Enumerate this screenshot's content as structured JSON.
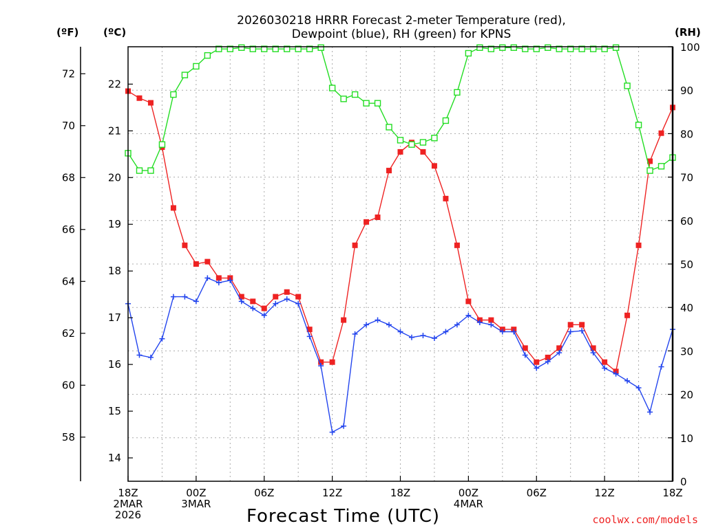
{
  "chart_data": {
    "type": "line",
    "title_lines": [
      "2026030218 HRRR Forecast 2-meter Temperature (red),",
      "Dewpoint (blue), RH (green) for KPNS"
    ],
    "unit_labels": {
      "fahrenheit": "(ºF)",
      "celsius": "(ºC)",
      "rh": "(RH)"
    },
    "xlabel": "Forecast Time (UTC)",
    "credit": "coolwx.com/models",
    "x_range": [
      0,
      48
    ],
    "x_ticks": [
      {
        "hour": 0,
        "lines": [
          "18Z",
          "2MAR",
          "2026"
        ]
      },
      {
        "hour": 6,
        "lines": [
          "00Z",
          "3MAR"
        ]
      },
      {
        "hour": 12,
        "lines": [
          "06Z"
        ]
      },
      {
        "hour": 18,
        "lines": [
          "12Z"
        ]
      },
      {
        "hour": 24,
        "lines": [
          "18Z"
        ]
      },
      {
        "hour": 30,
        "lines": [
          "00Z",
          "4MAR"
        ]
      },
      {
        "hour": 36,
        "lines": [
          "06Z"
        ]
      },
      {
        "hour": 42,
        "lines": [
          "12Z"
        ]
      },
      {
        "hour": 48,
        "lines": [
          "18Z"
        ]
      }
    ],
    "celsius_axis": {
      "range": [
        13.5,
        22.8
      ],
      "ticks": [
        "14",
        "15",
        "16",
        "17",
        "18",
        "19",
        "20",
        "21",
        "22"
      ]
    },
    "fahrenheit_axis": {
      "ticks": [
        "58",
        "60",
        "62",
        "64",
        "66",
        "68",
        "70",
        "72"
      ]
    },
    "rh_axis": {
      "range": [
        0,
        100
      ],
      "ticks": [
        "0",
        "10",
        "20",
        "30",
        "40",
        "50",
        "60",
        "70",
        "80",
        "90",
        "100"
      ]
    },
    "series": [
      {
        "name": "2-meter Temperature",
        "color": "#ee2222",
        "marker": "filled-square",
        "axis": "celsius",
        "values": [
          21.85,
          21.7,
          21.6,
          20.65,
          19.35,
          18.55,
          18.15,
          18.2,
          17.85,
          17.85,
          17.45,
          17.35,
          17.2,
          17.45,
          17.55,
          17.45,
          16.75,
          16.05,
          16.05,
          16.95,
          18.55,
          19.05,
          19.15,
          20.15,
          20.55,
          20.75,
          20.55,
          20.25,
          19.55,
          18.55,
          17.35,
          16.95,
          16.95,
          16.75,
          16.75,
          16.35,
          16.05,
          16.15,
          16.35,
          16.85,
          16.85,
          16.35,
          16.05,
          15.85,
          17.05,
          18.55,
          20.35,
          20.95,
          21.5
        ]
      },
      {
        "name": "Dewpoint",
        "color": "#2244ee",
        "marker": "plus",
        "axis": "celsius",
        "values": [
          17.3,
          16.2,
          16.15,
          16.55,
          17.45,
          17.45,
          17.35,
          17.85,
          17.75,
          17.8,
          17.35,
          17.2,
          17.05,
          17.3,
          17.4,
          17.3,
          16.6,
          15.97,
          14.55,
          14.68,
          16.65,
          16.85,
          16.95,
          16.85,
          16.7,
          16.58,
          16.62,
          16.56,
          16.7,
          16.85,
          17.05,
          16.9,
          16.85,
          16.7,
          16.7,
          16.2,
          15.92,
          16.06,
          16.25,
          16.7,
          16.72,
          16.25,
          15.92,
          15.8,
          15.65,
          15.5,
          14.98,
          15.95,
          16.75
        ]
      },
      {
        "name": "RH",
        "color": "#22dd22",
        "marker": "open-square",
        "axis": "rh",
        "values": [
          75.5,
          71.5,
          71.5,
          77.5,
          89,
          93.5,
          95.5,
          98,
          99.5,
          99.5,
          99.8,
          99.5,
          99.5,
          99.5,
          99.5,
          99.5,
          99.5,
          99.8,
          90.5,
          88,
          89,
          87,
          87,
          81.5,
          78.5,
          77.5,
          78,
          79,
          83,
          89.5,
          98.5,
          99.8,
          99.5,
          99.8,
          99.8,
          99.5,
          99.5,
          99.8,
          99.5,
          99.5,
          99.5,
          99.5,
          99.5,
          99.8,
          91,
          82,
          71.5,
          72.5,
          74.5
        ]
      }
    ]
  }
}
